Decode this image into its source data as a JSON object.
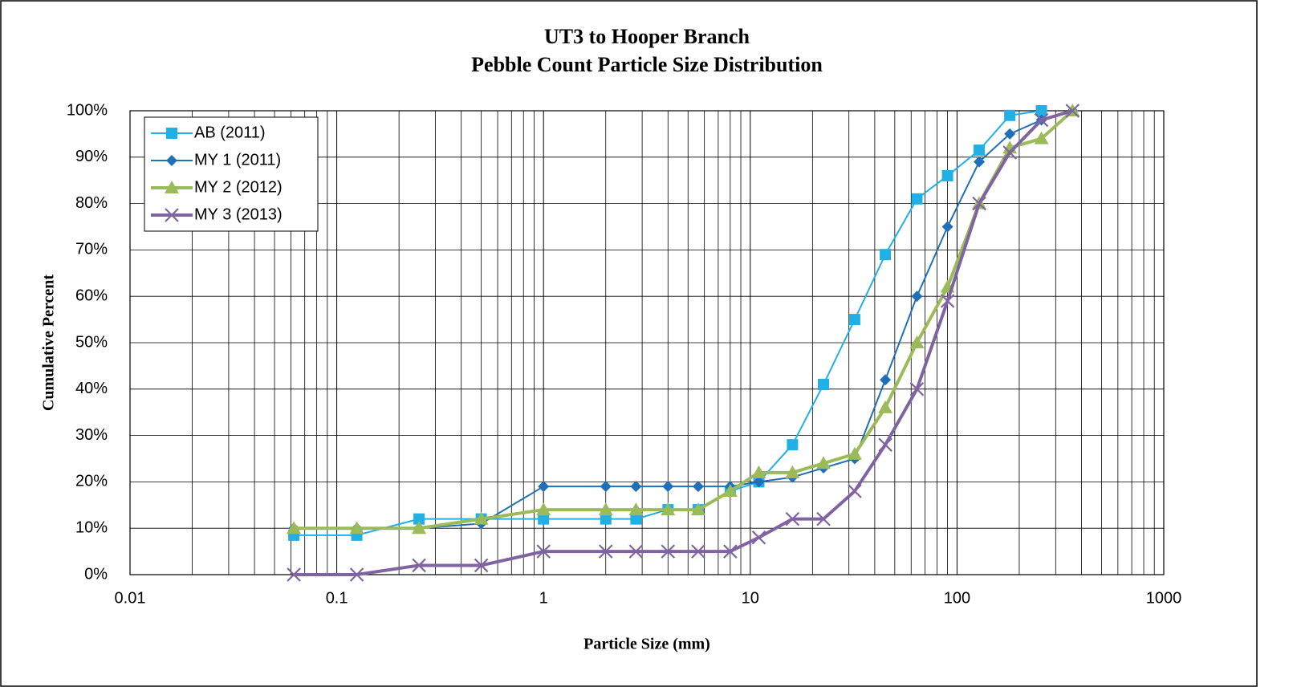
{
  "chart_data": {
    "type": "line",
    "title": "UT3 to Hooper Branch",
    "subtitle": "Pebble Count Particle Size Distribution",
    "x_label": "Particle Size (mm)",
    "y_label": "Cumulative Percent",
    "x_scale": "log",
    "xlim": [
      0.01,
      1000
    ],
    "xticks": [
      0.01,
      0.1,
      1,
      10,
      100,
      1000
    ],
    "ylim": [
      0,
      100
    ],
    "yticks": [
      {
        "value": 0,
        "label": "0%"
      },
      {
        "value": 10,
        "label": "10%"
      },
      {
        "value": 20,
        "label": "20%"
      },
      {
        "value": 30,
        "label": "30%"
      },
      {
        "value": 40,
        "label": "40%"
      },
      {
        "value": 50,
        "label": "50%"
      },
      {
        "value": 60,
        "label": "60%"
      },
      {
        "value": 70,
        "label": "70%"
      },
      {
        "value": 80,
        "label": "80%"
      },
      {
        "value": 90,
        "label": "90%"
      },
      {
        "value": 100,
        "label": "100%"
      }
    ],
    "grid": true,
    "minor_grid": true,
    "legend": "top-left",
    "x": [
      0.062,
      0.125,
      0.25,
      0.5,
      1,
      2,
      2.8,
      4,
      5.6,
      8,
      11,
      16,
      22.6,
      32,
      45,
      64,
      90,
      128,
      180,
      256,
      362
    ],
    "series": [
      {
        "name": "AB (2011)",
        "color": "#21b0e6",
        "marker": "square",
        "width": 2,
        "values": [
          8.5,
          8.5,
          12,
          12,
          12,
          12,
          12,
          14,
          14,
          18,
          20,
          28,
          41,
          55,
          69,
          81,
          86,
          91.5,
          99,
          100,
          null
        ]
      },
      {
        "name": "MY 1 (2011)",
        "color": "#2070b8",
        "marker": "diamond",
        "width": 2,
        "values": [
          10,
          10,
          10,
          11,
          19,
          19,
          19,
          19,
          19,
          19,
          20,
          21,
          23,
          25,
          42,
          60,
          75,
          89,
          95,
          98,
          100
        ]
      },
      {
        "name": "MY 2 (2012)",
        "color": "#9bbb59",
        "marker": "triangle",
        "width": 4,
        "values": [
          10,
          10,
          10,
          12,
          14,
          14,
          14,
          14,
          14,
          18,
          22,
          22,
          24,
          26,
          36,
          50,
          62,
          80,
          92,
          94,
          100
        ]
      },
      {
        "name": "MY 3 (2013)",
        "color": "#8064a2",
        "marker": "x",
        "width": 4,
        "values": [
          0,
          0,
          2,
          2,
          5,
          5,
          5,
          5,
          5,
          5,
          8,
          12,
          12,
          18,
          28,
          40,
          59,
          80,
          91,
          98,
          100
        ]
      }
    ]
  }
}
